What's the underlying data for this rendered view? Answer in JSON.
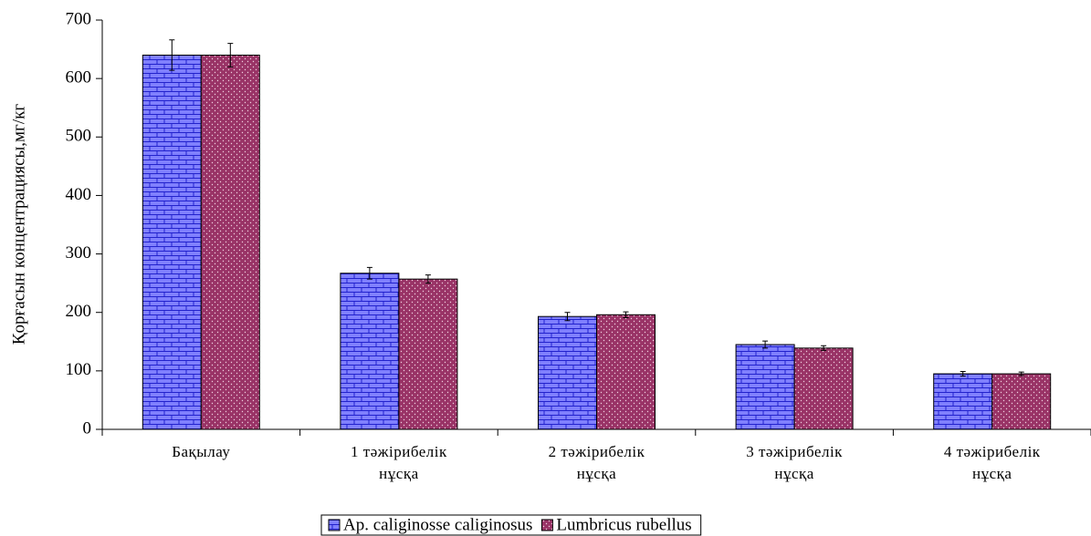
{
  "chart_data": {
    "type": "bar",
    "y_label": "Қорғасын концентрациясы,мг/кг",
    "categories": [
      "Бақылау",
      "1 тәжірибелік\nнұсқа",
      "2 тәжірибелік\nнұсқа",
      "3 тәжірибелік\nнұсқа",
      "4 тәжірибелік\nнұсқа"
    ],
    "series": [
      {
        "name": "Ap. caliginosse caliginosus",
        "color": "#8080ff",
        "pattern": "brick",
        "values": [
          640,
          267,
          193,
          145,
          95
        ],
        "errors": [
          26,
          10,
          7,
          6,
          4
        ]
      },
      {
        "name": "Lumbricus rubellus",
        "color": "#993366",
        "pattern": "dots",
        "values": [
          640,
          257,
          196,
          139,
          95
        ],
        "errors": [
          20,
          7,
          5,
          4,
          3
        ]
      }
    ],
    "ylim": [
      0,
      700
    ],
    "yticks": [
      0,
      100,
      200,
      300,
      400,
      500,
      600,
      700
    ],
    "grid": false,
    "legend": "bottom"
  }
}
